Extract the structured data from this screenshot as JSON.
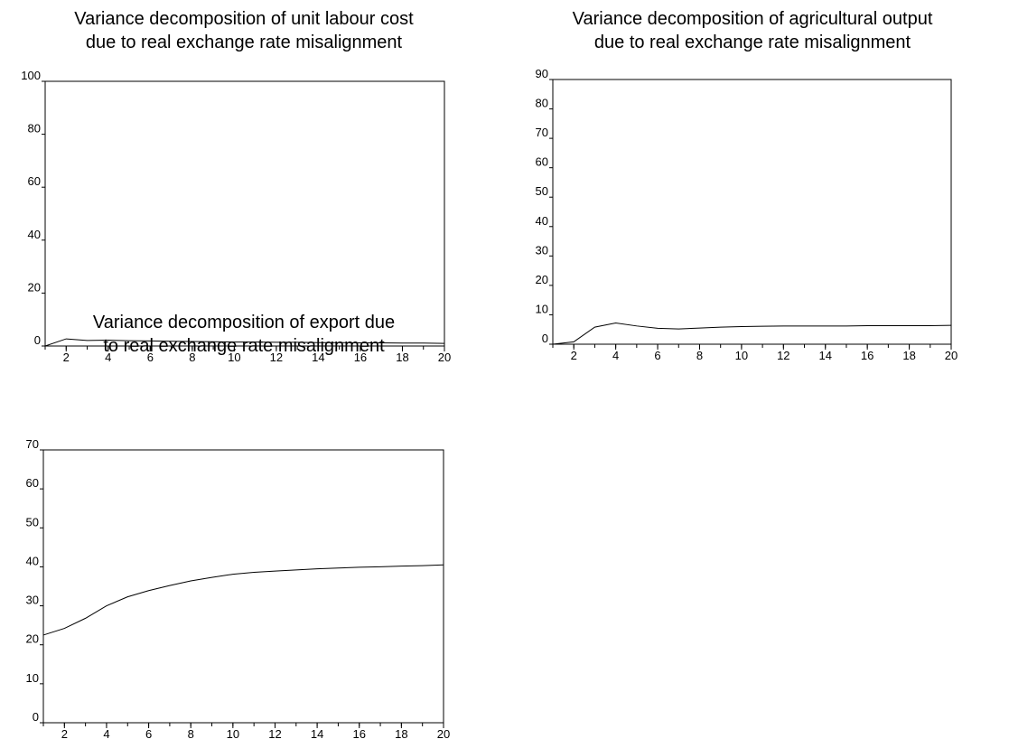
{
  "chart_data": [
    {
      "type": "line",
      "title": [
        "Variance decomposition of unit labour cost",
        "due to real exchange rate misalignment"
      ],
      "x": [
        1,
        2,
        3,
        4,
        5,
        6,
        7,
        8,
        9,
        10,
        11,
        12,
        13,
        14,
        15,
        16,
        17,
        18,
        19,
        20
      ],
      "series": [
        {
          "color": "#000000",
          "values": [
            0,
            2.7,
            2.1,
            2.2,
            2.0,
            1.9,
            1.8,
            1.7,
            1.6,
            1.5,
            1.5,
            1.4,
            1.4,
            1.3,
            1.3,
            1.2,
            1.2,
            1.1,
            1.1,
            1.0
          ]
        }
      ],
      "xlim": [
        1,
        20
      ],
      "xticks": [
        2,
        4,
        6,
        8,
        10,
        12,
        14,
        16,
        18,
        20
      ],
      "ylim": [
        0,
        100
      ],
      "yticks": [
        0,
        20,
        40,
        60,
        80,
        100
      ]
    },
    {
      "type": "line",
      "title": [
        "Variance decomposition of agricultural output",
        "due to real exchange rate misalignment"
      ],
      "x": [
        1,
        2,
        3,
        4,
        5,
        6,
        7,
        8,
        9,
        10,
        11,
        12,
        13,
        14,
        15,
        16,
        17,
        18,
        19,
        20
      ],
      "series": [
        {
          "color": "#000000",
          "values": [
            0,
            0.8,
            5.8,
            7.2,
            6.2,
            5.4,
            5.2,
            5.5,
            5.8,
            6.0,
            6.1,
            6.2,
            6.2,
            6.2,
            6.2,
            6.3,
            6.3,
            6.3,
            6.3,
            6.4
          ]
        }
      ],
      "xlim": [
        1,
        20
      ],
      "xticks": [
        2,
        4,
        6,
        8,
        10,
        12,
        14,
        16,
        18,
        20
      ],
      "ylim": [
        0,
        90
      ],
      "yticks": [
        0,
        10,
        20,
        30,
        40,
        50,
        60,
        70,
        80,
        90
      ]
    },
    {
      "type": "line",
      "title": [
        "Variance decomposition of export due",
        "to real exchange rate misalignment"
      ],
      "x": [
        1,
        2,
        3,
        4,
        5,
        6,
        7,
        8,
        9,
        10,
        11,
        12,
        13,
        14,
        15,
        16,
        17,
        18,
        19,
        20
      ],
      "series": [
        {
          "color": "#000000",
          "values": [
            22.5,
            24.2,
            26.8,
            30.0,
            32.3,
            33.9,
            35.2,
            36.4,
            37.3,
            38.1,
            38.6,
            38.9,
            39.2,
            39.5,
            39.7,
            39.9,
            40.0,
            40.2,
            40.3,
            40.5
          ]
        }
      ],
      "xlim": [
        1,
        20
      ],
      "xticks": [
        2,
        4,
        6,
        8,
        10,
        12,
        14,
        16,
        18,
        20
      ],
      "ylim": [
        0,
        70
      ],
      "yticks": [
        0,
        10,
        20,
        30,
        40,
        50,
        60,
        70
      ]
    }
  ]
}
